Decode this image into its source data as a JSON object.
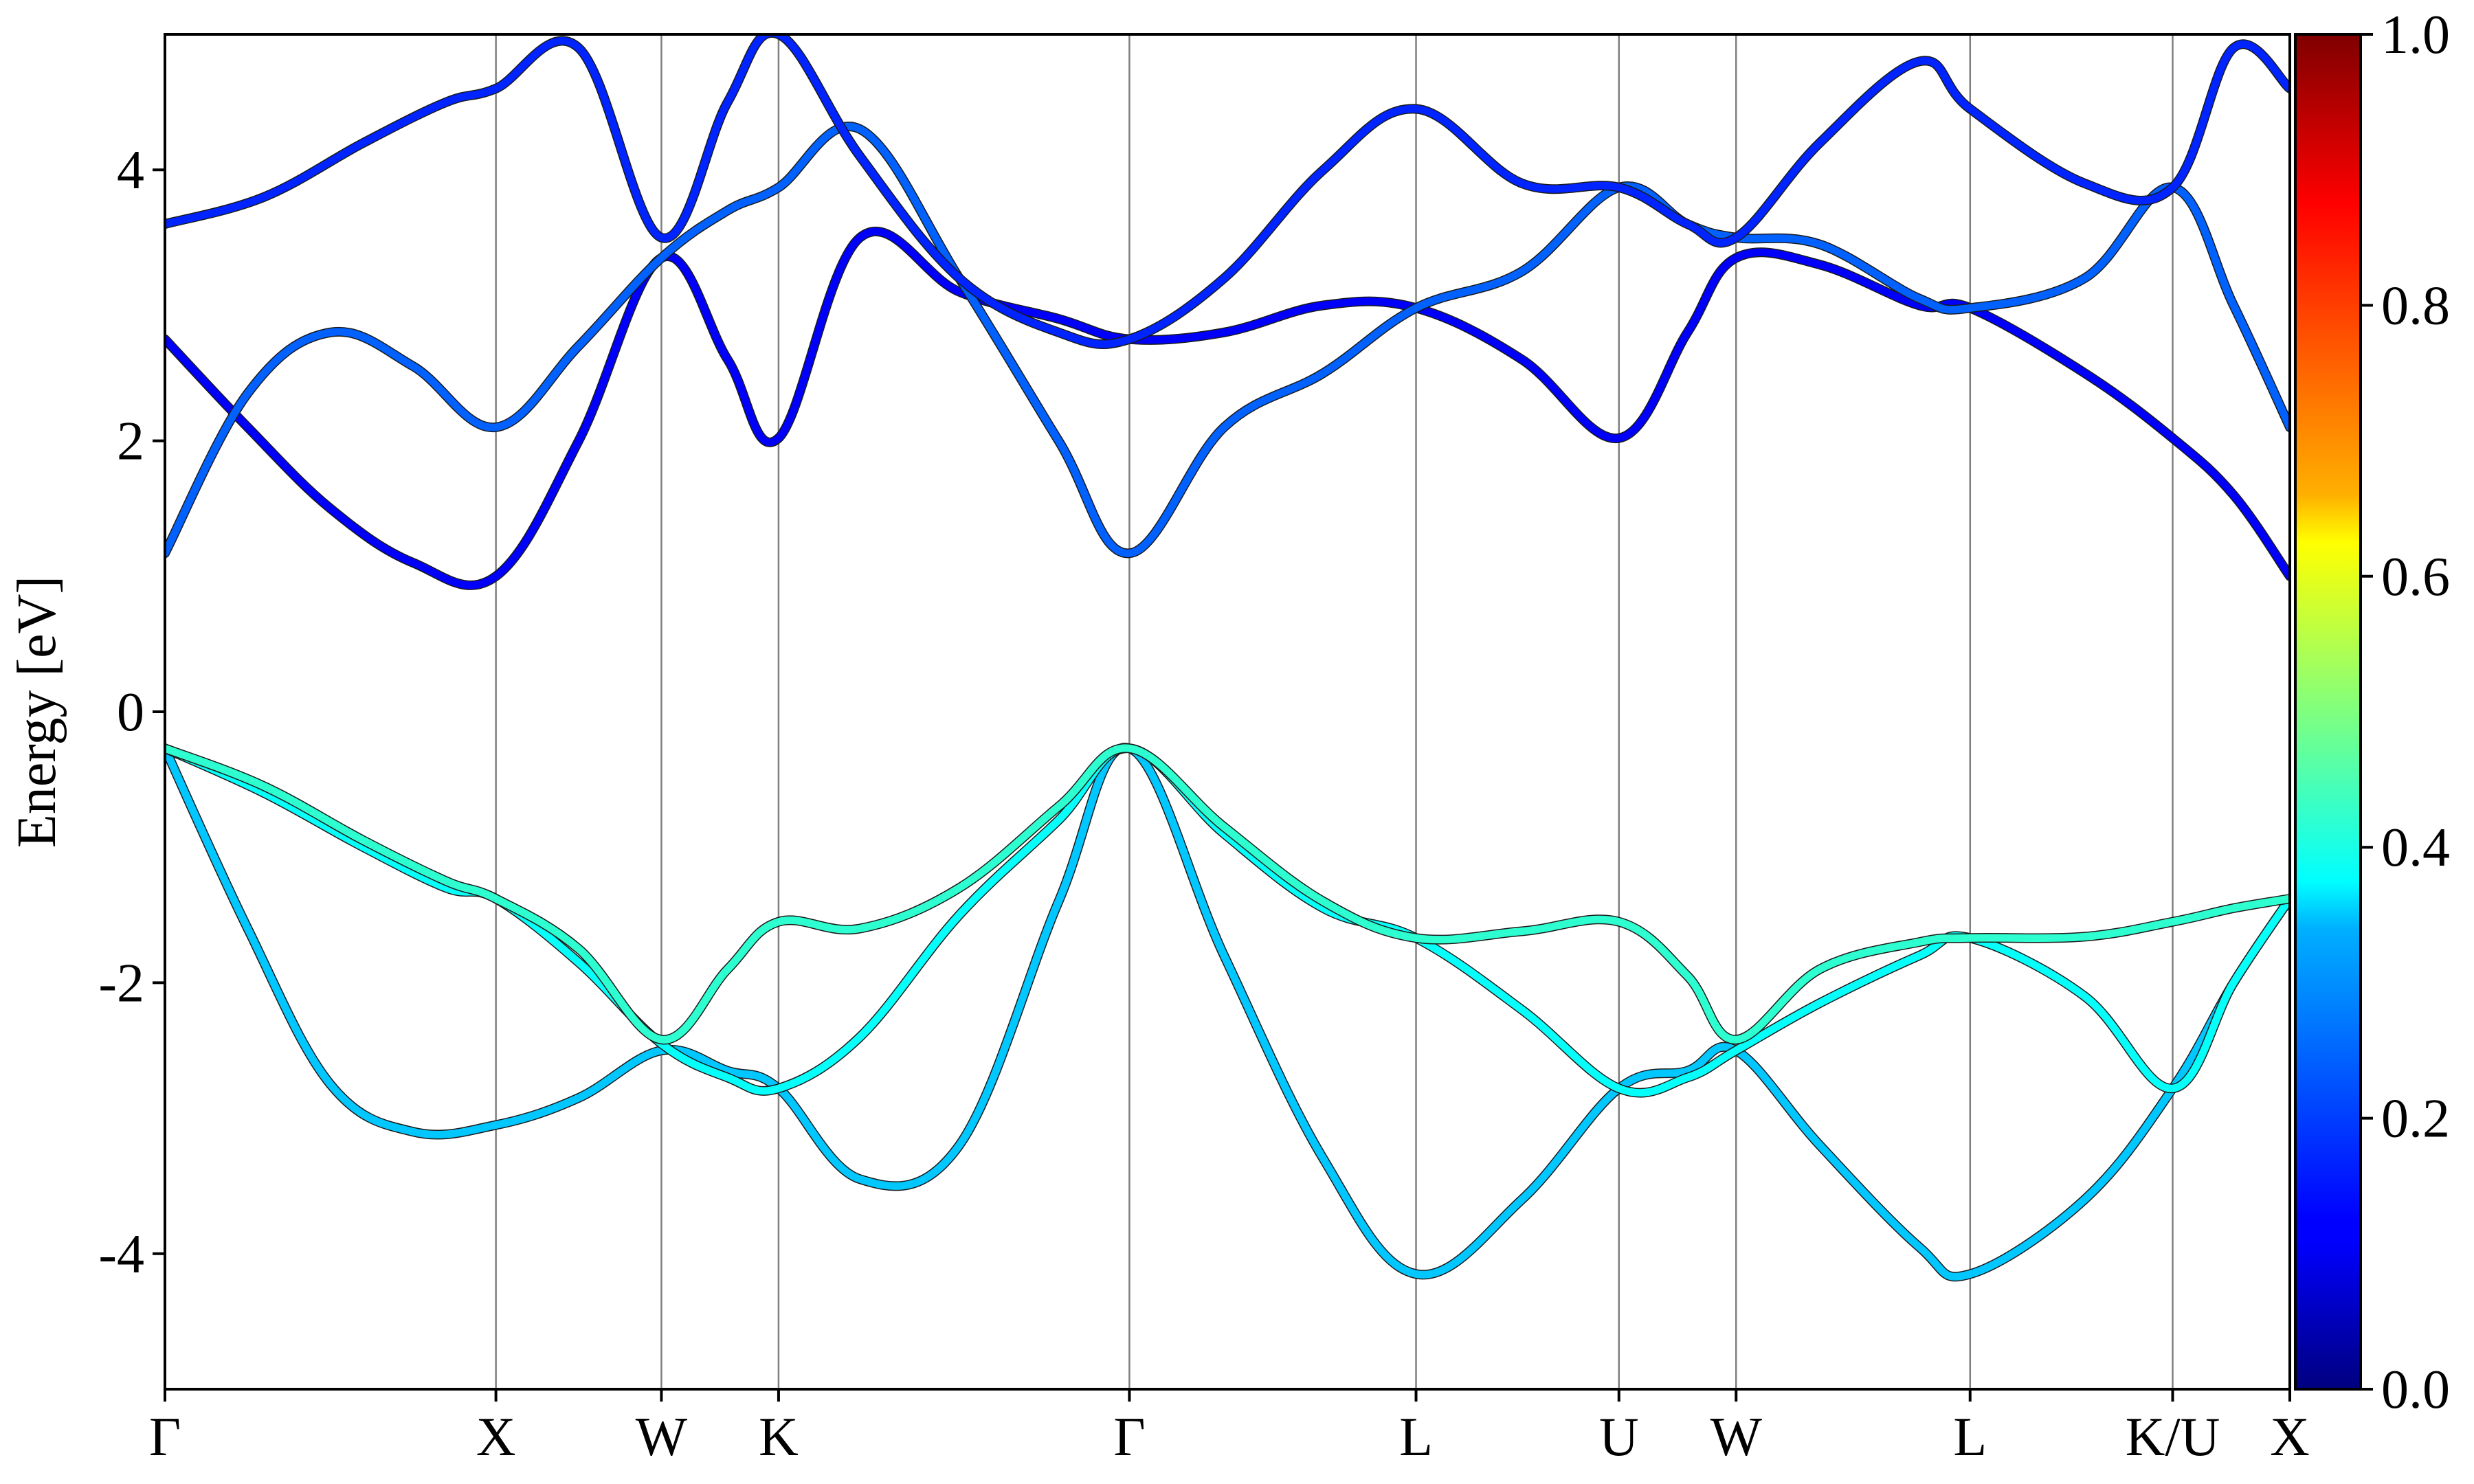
{
  "chart_data": {
    "type": "line",
    "title": "",
    "xlabel": "",
    "ylabel": "Energy [eV]",
    "ylim": [
      -5,
      5
    ],
    "y_ticks": [
      -4,
      -2,
      0,
      2,
      4
    ],
    "y_tick_labels": [
      "-4",
      "-2",
      "0",
      "2",
      "4"
    ],
    "k_points": [
      {
        "label": "Γ",
        "x": 0
      },
      {
        "label": "X",
        "x": 1.0
      },
      {
        "label": "W",
        "x": 1.5
      },
      {
        "label": "K",
        "x": 1.854
      },
      {
        "label": "Γ",
        "x": 2.914
      },
      {
        "label": "L",
        "x": 3.78
      },
      {
        "label": "U",
        "x": 4.393
      },
      {
        "label": "W",
        "x": 4.747
      },
      {
        "label": "L",
        "x": 5.454
      },
      {
        "label": "K/U",
        "x": 6.066
      },
      {
        "label": "X",
        "x": 6.42
      }
    ],
    "colorbar": {
      "colormap": "jet",
      "range": [
        0.0,
        1.0
      ],
      "ticks": [
        0.0,
        0.2,
        0.4,
        0.6,
        0.8,
        1.0
      ],
      "tick_labels": [
        "0.0",
        "0.2",
        "0.4",
        "0.6",
        "0.8",
        "1.0"
      ]
    },
    "series": [
      {
        "weight": 0.32,
        "x": [
          0,
          0.25,
          0.5,
          0.75,
          1.0,
          1.25,
          1.5,
          1.7,
          1.854,
          2.1,
          2.4,
          2.7,
          2.914,
          3.2,
          3.5,
          3.78,
          4.1,
          4.393,
          4.6,
          4.747,
          5.0,
          5.3,
          5.454,
          5.8,
          6.066,
          6.25,
          6.42
        ],
        "y": [
          -0.27,
          -1.6,
          -2.75,
          -3.1,
          -3.05,
          -2.85,
          -2.5,
          -2.65,
          -2.78,
          -3.45,
          -3.2,
          -1.4,
          -0.27,
          -1.8,
          -3.3,
          -4.15,
          -3.6,
          -2.78,
          -2.65,
          -2.5,
          -3.2,
          -3.95,
          -4.15,
          -3.6,
          -2.78,
          -2.0,
          -1.38
        ]
      },
      {
        "weight": 0.38,
        "x": [
          0,
          0.3,
          0.6,
          0.85,
          1.0,
          1.25,
          1.5,
          1.7,
          1.854,
          2.1,
          2.4,
          2.7,
          2.914,
          3.2,
          3.5,
          3.78,
          4.1,
          4.393,
          4.6,
          4.747,
          5.0,
          5.3,
          5.454,
          5.8,
          6.066,
          6.25,
          6.42
        ],
        "y": [
          -0.27,
          -0.6,
          -1.0,
          -1.3,
          -1.38,
          -1.85,
          -2.45,
          -2.7,
          -2.78,
          -2.4,
          -1.5,
          -0.8,
          -0.27,
          -0.9,
          -1.45,
          -1.67,
          -2.2,
          -2.78,
          -2.7,
          -2.5,
          -2.15,
          -1.8,
          -1.67,
          -2.1,
          -2.78,
          -2.0,
          -1.38
        ]
      },
      {
        "weight": 0.42,
        "x": [
          0,
          0.3,
          0.6,
          0.85,
          1.0,
          1.25,
          1.5,
          1.7,
          1.854,
          2.1,
          2.4,
          2.7,
          2.914,
          3.2,
          3.5,
          3.78,
          4.1,
          4.393,
          4.6,
          4.747,
          5.0,
          5.3,
          5.454,
          5.8,
          6.066,
          6.25,
          6.42
        ],
        "y": [
          -0.27,
          -0.55,
          -0.95,
          -1.25,
          -1.38,
          -1.75,
          -2.42,
          -1.9,
          -1.55,
          -1.6,
          -1.3,
          -0.7,
          -0.27,
          -0.85,
          -1.4,
          -1.67,
          -1.62,
          -1.55,
          -1.95,
          -2.42,
          -1.9,
          -1.7,
          -1.67,
          -1.66,
          -1.55,
          -1.45,
          -1.38
        ]
      },
      {
        "weight": 0.12,
        "x": [
          0,
          0.25,
          0.5,
          0.75,
          1.0,
          1.25,
          1.5,
          1.7,
          1.854,
          2.1,
          2.4,
          2.7,
          2.914,
          3.2,
          3.5,
          3.78,
          4.1,
          4.393,
          4.6,
          4.747,
          5.0,
          5.3,
          5.454,
          5.8,
          6.066,
          6.25,
          6.42
        ],
        "y": [
          2.75,
          2.1,
          1.5,
          1.1,
          1.0,
          2.0,
          3.35,
          2.6,
          2.02,
          3.5,
          3.1,
          2.9,
          2.75,
          2.8,
          3.0,
          2.98,
          2.6,
          2.02,
          2.8,
          3.35,
          3.3,
          3.0,
          2.98,
          2.5,
          2.02,
          1.6,
          1.0
        ]
      },
      {
        "weight": 0.22,
        "x": [
          0,
          0.25,
          0.5,
          0.75,
          1.0,
          1.25,
          1.5,
          1.7,
          1.854,
          2.1,
          2.4,
          2.7,
          2.914,
          3.2,
          3.5,
          3.78,
          4.1,
          4.393,
          4.6,
          4.747,
          5.0,
          5.3,
          5.454,
          5.8,
          6.066,
          6.25,
          6.42
        ],
        "y": [
          1.17,
          2.35,
          2.8,
          2.55,
          2.1,
          2.7,
          3.35,
          3.7,
          3.87,
          4.3,
          3.2,
          2.0,
          1.17,
          2.1,
          2.5,
          2.98,
          3.25,
          3.87,
          3.6,
          3.5,
          3.45,
          3.05,
          2.98,
          3.2,
          3.87,
          3.0,
          2.1
        ]
      },
      {
        "weight": 0.16,
        "x": [
          0,
          0.3,
          0.6,
          0.85,
          1.0,
          1.25,
          1.5,
          1.7,
          1.854,
          2.1,
          2.4,
          2.7,
          2.914,
          3.2,
          3.5,
          3.78,
          4.1,
          4.393,
          4.6,
          4.747,
          5.0,
          5.3,
          5.454,
          5.8,
          6.066,
          6.25,
          6.42
        ],
        "y": [
          3.6,
          3.8,
          4.2,
          4.5,
          4.6,
          4.9,
          3.5,
          4.5,
          5.0,
          4.1,
          3.2,
          2.8,
          2.75,
          3.2,
          4.0,
          4.45,
          3.9,
          3.87,
          3.6,
          3.5,
          4.2,
          4.8,
          4.45,
          3.9,
          3.87,
          4.9,
          4.6
        ]
      }
    ]
  }
}
